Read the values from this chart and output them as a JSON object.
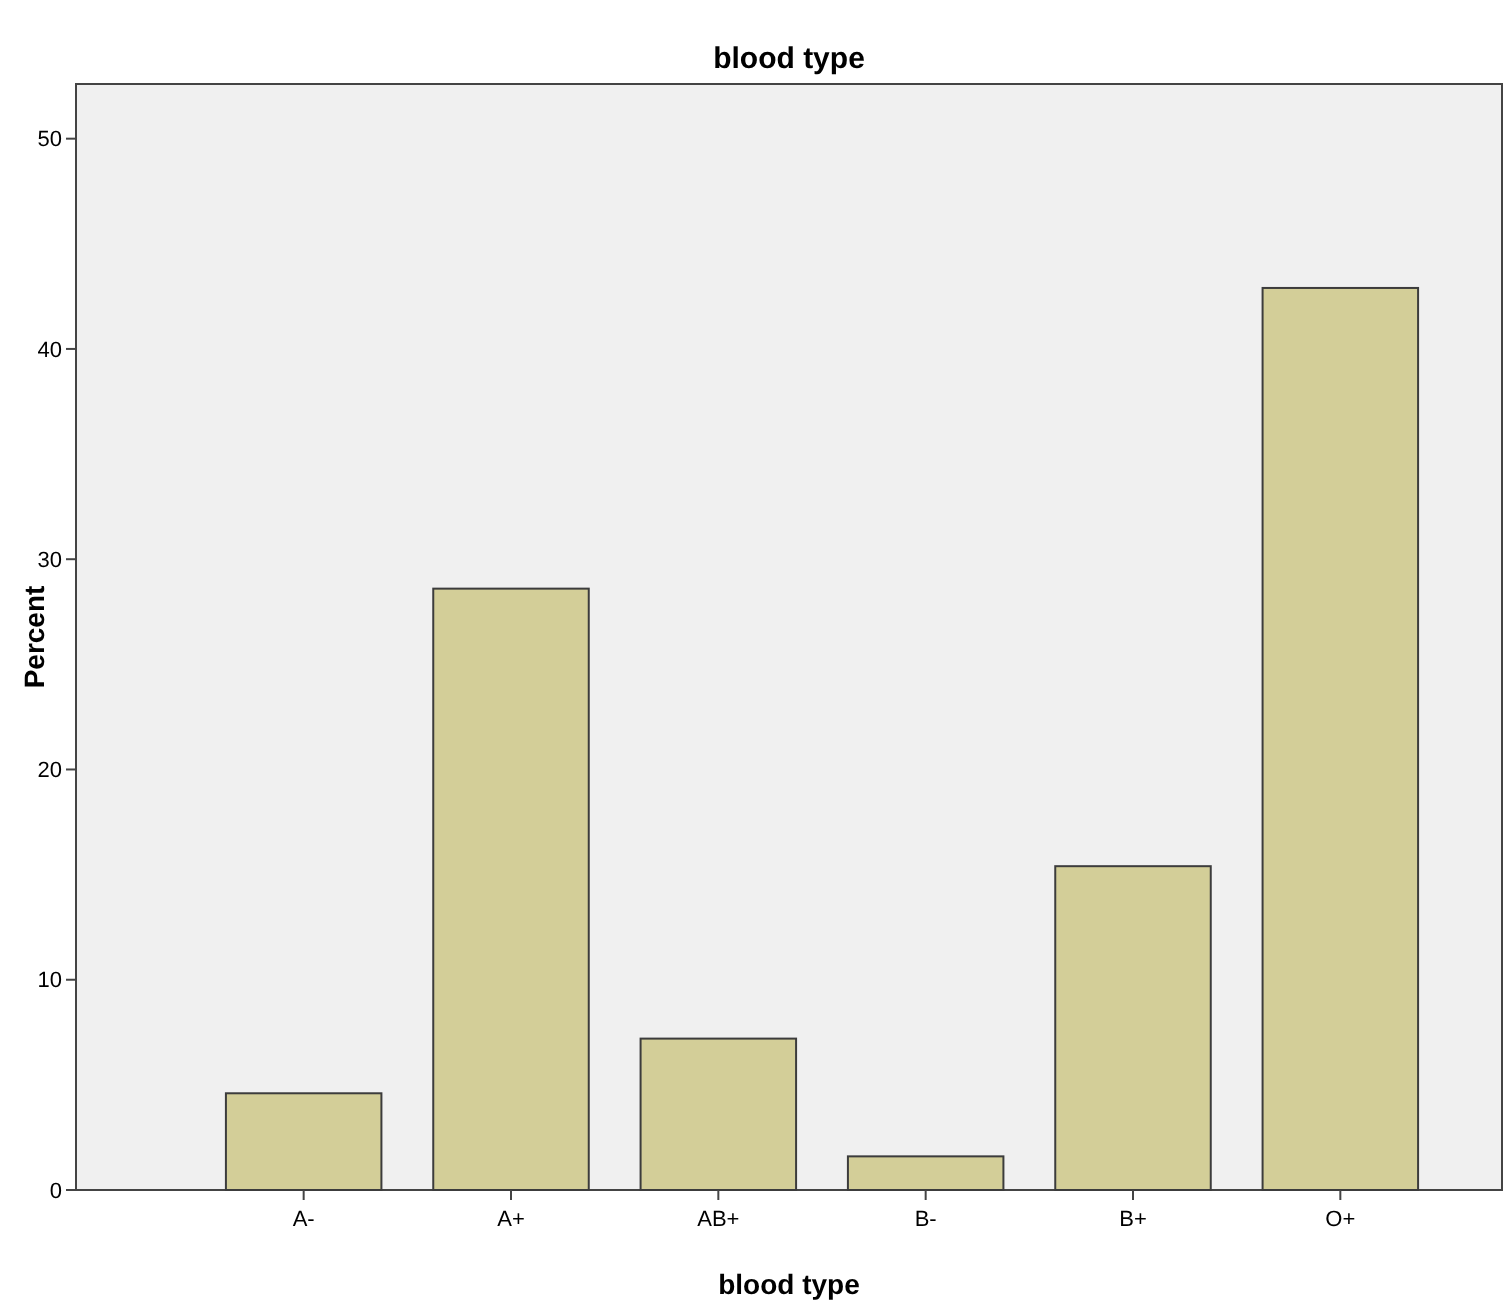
{
  "chart_data": {
    "type": "bar",
    "title": "blood type",
    "xlabel": "blood type",
    "ylabel": "Percent",
    "categories": [
      "A-",
      "A+",
      "AB+",
      "B-",
      "B+",
      "O+"
    ],
    "values": [
      4.6,
      28.6,
      7.2,
      1.6,
      15.4,
      42.9
    ],
    "color": "#d3ce98",
    "ylim": [
      0,
      52.6
    ],
    "yticks": [
      0,
      10,
      20,
      30,
      40,
      50
    ],
    "grid": false
  }
}
